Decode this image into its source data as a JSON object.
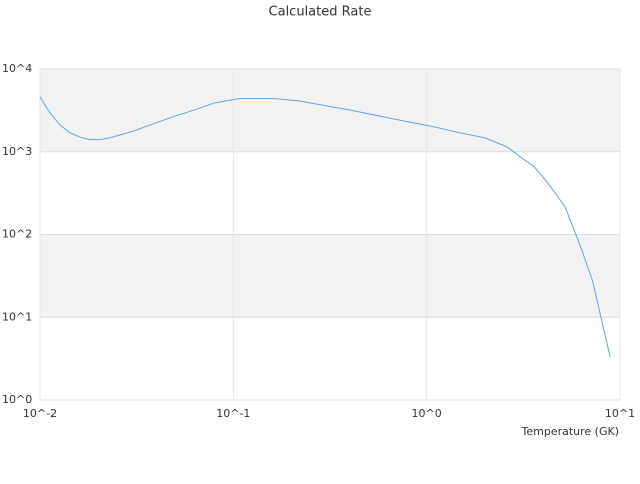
{
  "chart_data": {
    "type": "line",
    "title": "Calculated Rate",
    "x_label": "Temperature (GK)",
    "x_scale": "log",
    "y_scale": "log",
    "x": [
      0.01,
      0.0112,
      0.0127,
      0.0143,
      0.0161,
      0.0181,
      0.0204,
      0.023,
      0.0259,
      0.031,
      0.039,
      0.05,
      0.063,
      0.08,
      0.108,
      0.162,
      0.22,
      0.4,
      0.73,
      1.04,
      1.48,
      2.0,
      2.6,
      3.0,
      3.6,
      4.3,
      5.2,
      6.2,
      7.2,
      8.9
    ],
    "series": [
      {
        "color": "#5aa5e6",
        "values": [
          4600,
          3000,
          2100,
          1700,
          1500,
          1400,
          1400,
          1470,
          1600,
          1800,
          2200,
          2700,
          3200,
          3900,
          4400,
          4400,
          4100,
          3200,
          2400,
          2050,
          1700,
          1470,
          1150,
          890,
          660,
          400,
          215,
          75,
          28,
          3.3
        ]
      }
    ],
    "xlim": [
      0.01,
      10
    ],
    "ylim": [
      1,
      10000
    ],
    "xticks": [
      {
        "value": 0.01,
        "label": "10^-2"
      },
      {
        "value": 0.1,
        "label": "10^-1"
      },
      {
        "value": 1,
        "label": "10^0"
      },
      {
        "value": 10,
        "label": "10^1"
      }
    ],
    "yticks": [
      {
        "value": 1,
        "label": "10^0"
      },
      {
        "value": 10,
        "label": "10^1"
      },
      {
        "value": 100,
        "label": "10^2"
      },
      {
        "value": 1000,
        "label": "10^3"
      },
      {
        "value": 10000,
        "label": "10^4"
      }
    ],
    "grid": true,
    "band_color": "#f2f2f2"
  }
}
